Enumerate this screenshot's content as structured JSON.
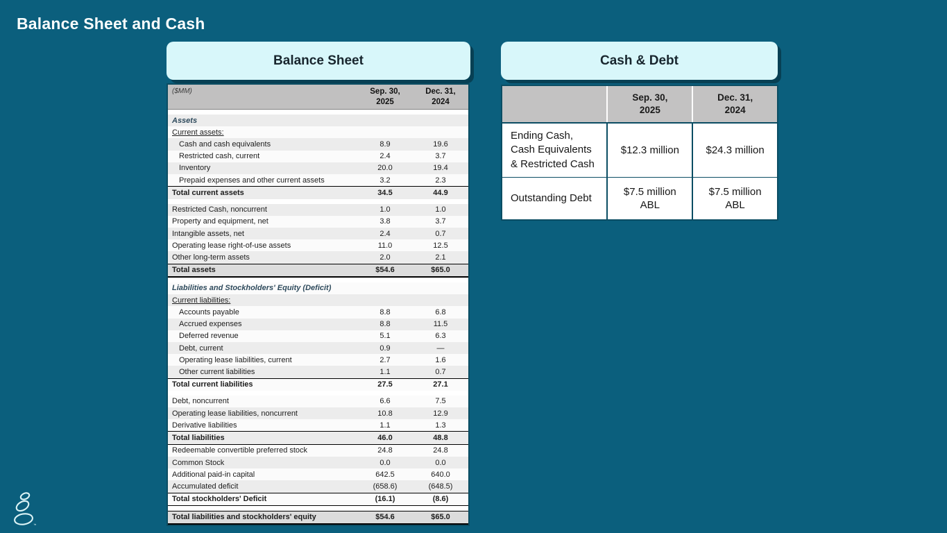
{
  "slide": {
    "title": "Balance Sheet and Cash"
  },
  "colors": {
    "background": "#0B5F7D",
    "card_header_bg": "#D8F7FA",
    "table_border": "#0B4D63",
    "header_row_bg": "#C1C0C0",
    "total_row_bg": "#DCDCDC",
    "stripe_bg": "#ECECEC",
    "logo_stroke": "#DDF4F6"
  },
  "balance_sheet": {
    "card_title": "Balance Sheet",
    "unit_label": "($MM)",
    "col_headers": [
      "Sep. 30,\n2025",
      "Dec. 31,\n2024"
    ],
    "rows": [
      {
        "type": "spacer"
      },
      {
        "type": "section",
        "label": "Assets",
        "v1": "",
        "v2": ""
      },
      {
        "type": "subsection",
        "label": "Current assets:",
        "v1": "",
        "v2": ""
      },
      {
        "type": "item_indent",
        "label": "Cash and cash equivalents",
        "v1": "8.9",
        "v2": "19.6"
      },
      {
        "type": "item_indent",
        "label": "Restricted cash, current",
        "v1": "2.4",
        "v2": "3.7"
      },
      {
        "type": "item_indent",
        "label": "Inventory",
        "v1": "20.0",
        "v2": "19.4"
      },
      {
        "type": "item_indent",
        "label": "Prepaid expenses and other current assets",
        "v1": "3.2",
        "v2": "2.3"
      },
      {
        "type": "total",
        "label": "Total current assets",
        "v1": "34.5",
        "v2": "44.9"
      },
      {
        "type": "spacer"
      },
      {
        "type": "item",
        "label": "Restricted Cash, noncurrent",
        "v1": "1.0",
        "v2": "1.0"
      },
      {
        "type": "item",
        "label": "Property and equipment, net",
        "v1": "3.8",
        "v2": "3.7"
      },
      {
        "type": "item",
        "label": "Intangible assets, net",
        "v1": "2.4",
        "v2": "0.7"
      },
      {
        "type": "item",
        "label": "Operating lease right-of-use assets",
        "v1": "11.0",
        "v2": "12.5"
      },
      {
        "type": "item",
        "label": "Other long-term assets",
        "v1": "2.0",
        "v2": "2.1"
      },
      {
        "type": "grand",
        "label": "Total assets",
        "v1": "$54.6",
        "v2": "$65.0"
      },
      {
        "type": "spacer"
      },
      {
        "type": "section",
        "label": "Liabilities and Stockholders' Equity (Deficit)",
        "v1": "",
        "v2": ""
      },
      {
        "type": "subsection",
        "label": "Current liabilities:",
        "v1": "",
        "v2": ""
      },
      {
        "type": "item_indent",
        "label": "Accounts payable",
        "v1": "8.8",
        "v2": "6.8"
      },
      {
        "type": "item_indent",
        "label": "Accrued expenses",
        "v1": "8.8",
        "v2": "11.5"
      },
      {
        "type": "item_indent",
        "label": "Deferred revenue",
        "v1": "5.1",
        "v2": "6.3"
      },
      {
        "type": "item_indent",
        "label": "Debt, current",
        "v1": "0.9",
        "v2": "—"
      },
      {
        "type": "item_indent",
        "label": "Operating lease liabilities, current",
        "v1": "2.7",
        "v2": "1.6"
      },
      {
        "type": "item_indent",
        "label": "Other current liabilities",
        "v1": "1.1",
        "v2": "0.7"
      },
      {
        "type": "total",
        "label": "Total current liabilities",
        "v1": "27.5",
        "v2": "27.1"
      },
      {
        "type": "spacer"
      },
      {
        "type": "item",
        "label": "Debt, noncurrent",
        "v1": "6.6",
        "v2": "7.5"
      },
      {
        "type": "item",
        "label": "Operating lease liabilities, noncurrent",
        "v1": "10.8",
        "v2": "12.9"
      },
      {
        "type": "item",
        "label": "Derivative liabilities",
        "v1": "1.1",
        "v2": "1.3"
      },
      {
        "type": "total_both",
        "label": "Total liabilities",
        "v1": "46.0",
        "v2": "48.8"
      },
      {
        "type": "item",
        "label": "Redeemable convertible preferred stock",
        "v1": "24.8",
        "v2": "24.8"
      },
      {
        "type": "item",
        "label": "Common Stock",
        "v1": "0.0",
        "v2": "0.0"
      },
      {
        "type": "item",
        "label": "Additional paid-in capital",
        "v1": "642.5",
        "v2": "640.0"
      },
      {
        "type": "item",
        "label": "Accumulated deficit",
        "v1": "(658.6)",
        "v2": "(648.5)"
      },
      {
        "type": "total_both",
        "label": "Total stockholders' Deficit",
        "v1": "(16.1)",
        "v2": "(8.6)"
      },
      {
        "type": "spacer"
      },
      {
        "type": "grand",
        "label": "Total liabilities and stockholders' equity",
        "v1": "$54.6",
        "v2": "$65.0"
      }
    ]
  },
  "cash_debt": {
    "card_title": "Cash & Debt",
    "col_headers": [
      "Sep. 30,\n2025",
      "Dec. 31,\n2024"
    ],
    "rows": [
      {
        "label": "Ending Cash, Cash Equivalents & Restricted Cash",
        "v1": "$12.3 million",
        "v2": "$24.3 million"
      },
      {
        "label": "Outstanding Debt",
        "v1": "$7.5 million\nABL",
        "v2": "$7.5 million\nABL"
      }
    ]
  },
  "logo": {
    "name": "stacked-stones",
    "trademark": "™"
  }
}
